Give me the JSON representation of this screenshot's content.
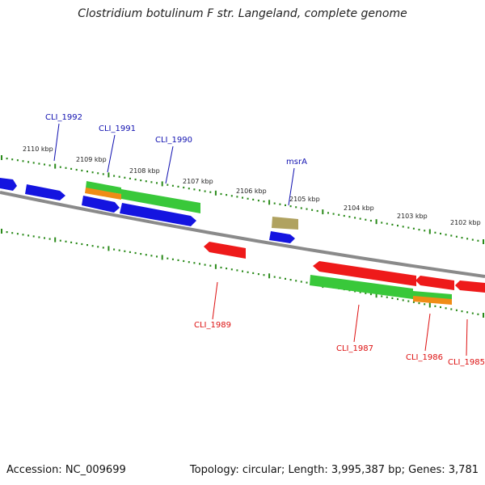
{
  "title": "Clostridium botulinum F str. Langeland, complete genome",
  "accession": "Accession: NC_009699",
  "summary": "Topology: circular; Length: 3,995,387 bp; Genes: 3,781",
  "colors": {
    "backbone": "#8a8a8a",
    "tick": "#2a8a1a",
    "plus_strand_label": "#1010b0",
    "minus_strand_label": "#dd1010",
    "blue_feature": "#1414e0",
    "red_feature": "#ee1a1a",
    "green_feature": "#39c83a",
    "orange_feature": "#f08c16",
    "khaki_feature": "#b0a260"
  },
  "kbp_labels": [
    "2110 kbp",
    "2109 kbp",
    "2108 kbp",
    "2107 kbp",
    "2106 kbp",
    "2105 kbp",
    "2104 kbp",
    "2103 kbp",
    "2102 kbp"
  ],
  "plus_gene_labels": [
    "CLI_1992",
    "CLI_1991",
    "CLI_1990",
    "msrA"
  ],
  "minus_gene_labels": [
    "CLI_1989",
    "CLI_1987",
    "CLI_1986",
    "CLI_1985"
  ]
}
